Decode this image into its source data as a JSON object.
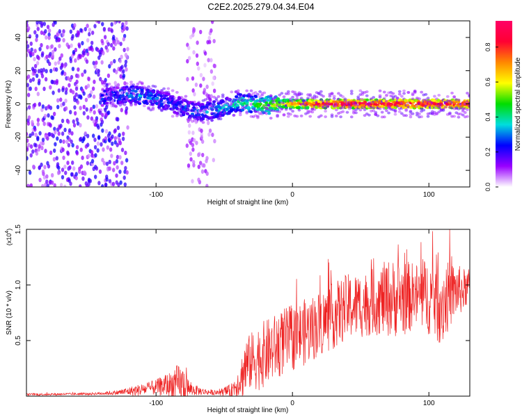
{
  "page": {
    "title": "C2E2.2025.279.04.34.E04"
  },
  "chart_data": [
    {
      "type": "heatmap",
      "xlabel": "Height of straight line (km)",
      "ylabel": "Frequency (Hz)",
      "xlim": [
        -195,
        130
      ],
      "ylim": [
        -50,
        50
      ],
      "xticks": [
        -100,
        0,
        100
      ],
      "xtick_labels": [
        "-100",
        "0",
        "100"
      ],
      "yticks": [
        -40,
        -20,
        0,
        20,
        40
      ],
      "ytick_labels": [
        "-40",
        "-20",
        "0",
        "20",
        "40"
      ],
      "colorbar": {
        "label": "Normalized spectral amplitude",
        "range": [
          0,
          0.95
        ],
        "ticks": [
          0.0,
          0.2,
          0.4,
          0.6,
          0.8
        ],
        "tick_labels": [
          "0.0",
          "0.2",
          "0.4",
          "0.6",
          "0.8"
        ],
        "colormap": "rainbow",
        "stops": [
          "#ffffff",
          "#9900ff",
          "#0000ff",
          "#00dddd",
          "#00dd00",
          "#ffff00",
          "#ff8800",
          "#ff0033",
          "#ff0066"
        ]
      },
      "ridge": {
        "x": [
          -140,
          -120,
          -110,
          -100,
          -90,
          -80,
          -70,
          -60,
          -50,
          -40,
          -30,
          -20,
          -10,
          0,
          20,
          40,
          60,
          80,
          100,
          130
        ],
        "freq_hz": [
          4,
          6,
          5,
          3,
          1,
          -2,
          -5,
          -4,
          -2,
          1,
          0,
          -1,
          0,
          0,
          0,
          0,
          0,
          0,
          0,
          0
        ],
        "amplitude": [
          0.25,
          0.3,
          0.3,
          0.28,
          0.25,
          0.25,
          0.3,
          0.3,
          0.35,
          0.4,
          0.45,
          0.5,
          0.6,
          0.7,
          0.85,
          0.9,
          0.9,
          0.9,
          0.9,
          0.9
        ]
      },
      "noise_bands": [
        {
          "x_range": [
            -195,
            -120
          ],
          "amplitude": 0.15
        },
        {
          "x_range": [
            -78,
            -57
          ],
          "amplitude": 0.08
        }
      ]
    },
    {
      "type": "line",
      "color": "#ee2222",
      "xlabel": "Height of straight line (km)",
      "ylabel": "SNR (10 * v/v)",
      "multiplier_label": "(x10",
      "multiplier_exp": "4",
      "multiplier_close": ")",
      "xlim": [
        -195,
        130
      ],
      "ylim": [
        0,
        1.5
      ],
      "xticks": [
        -100,
        0,
        100
      ],
      "xtick_labels": [
        "-100",
        "0",
        "100"
      ],
      "yticks": [
        0.5,
        1.0,
        1.5
      ],
      "ytick_labels": [
        "0.5",
        "1.0",
        "1.5"
      ],
      "envelope": {
        "x": [
          -195,
          -150,
          -130,
          -115,
          -100,
          -90,
          -85,
          -80,
          -75,
          -65,
          -55,
          -45,
          -38,
          -35,
          -32,
          -25,
          -15,
          -5,
          5,
          20,
          30,
          40,
          50,
          60,
          70,
          80,
          90,
          100,
          105,
          110,
          115,
          120,
          125,
          130
        ],
        "mean": [
          0.015,
          0.02,
          0.03,
          0.05,
          0.08,
          0.1,
          0.1,
          0.09,
          0.06,
          0.04,
          0.03,
          0.05,
          0.15,
          0.25,
          0.3,
          0.35,
          0.42,
          0.5,
          0.55,
          0.65,
          0.72,
          0.8,
          0.82,
          0.85,
          0.88,
          0.88,
          0.9,
          0.9,
          0.88,
          0.85,
          0.9,
          0.95,
          0.95,
          1.0
        ],
        "spread": [
          0.01,
          0.01,
          0.02,
          0.05,
          0.07,
          0.12,
          0.18,
          0.2,
          0.06,
          0.03,
          0.02,
          0.06,
          0.15,
          0.3,
          0.25,
          0.3,
          0.3,
          0.3,
          0.3,
          0.3,
          0.3,
          0.3,
          0.3,
          0.3,
          0.35,
          0.35,
          0.3,
          0.35,
          0.4,
          0.4,
          0.3,
          0.25,
          0.2,
          0.15
        ]
      }
    }
  ]
}
